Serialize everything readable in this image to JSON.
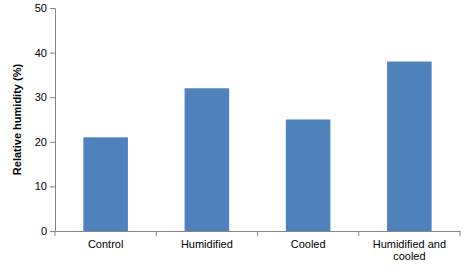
{
  "chart_data": {
    "type": "bar",
    "y_label": "Relative humidity (%)",
    "categories": [
      "Control",
      "Humidified",
      "Cooled",
      "Humidified and cooled"
    ],
    "values": [
      21,
      32,
      25,
      38
    ],
    "color": "#4f81bd",
    "ylim": [
      0,
      50
    ],
    "yticks": [
      0,
      10,
      20,
      30,
      40,
      50
    ],
    "grid": false
  }
}
